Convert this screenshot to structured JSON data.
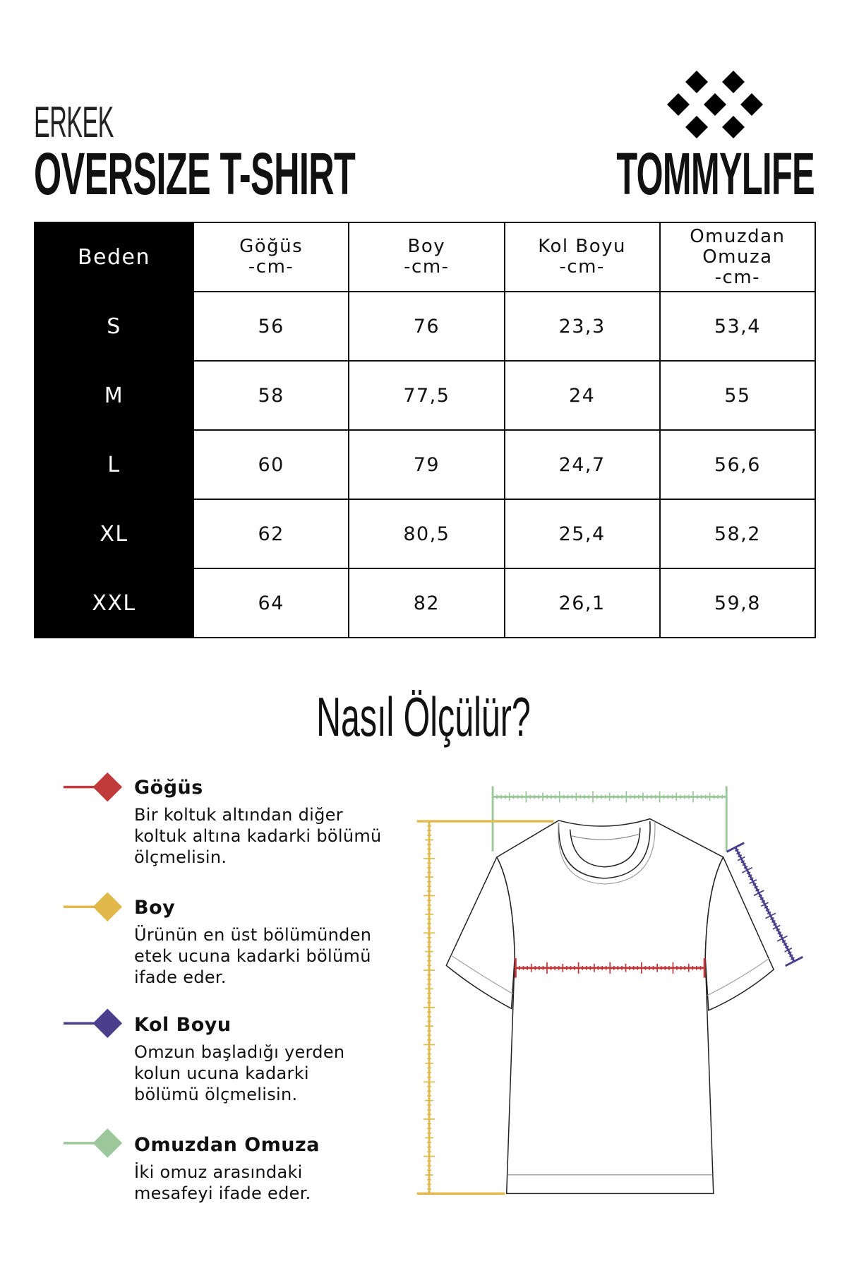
{
  "header": {
    "subtitle": "ERKEK",
    "title": "OVERSIZE T-SHIRT",
    "brand": "TOMMYLIFE"
  },
  "table": {
    "columns": [
      "Beden",
      "Göğüs\n-cm-",
      "Boy\n-cm-",
      "Kol Boyu\n-cm-",
      "Omuzdan\nOmuza\n-cm-"
    ],
    "column_lines": [
      [
        "Beden"
      ],
      [
        "Göğüs",
        "-cm-"
      ],
      [
        "Boy",
        "-cm-"
      ],
      [
        "Kol Boyu",
        "-cm-"
      ],
      [
        "Omuzdan",
        "Omuza",
        "-cm-"
      ]
    ],
    "rows": [
      [
        "S",
        "56",
        "76",
        "23,3",
        "53,4"
      ],
      [
        "M",
        "58",
        "77,5",
        "24",
        "55"
      ],
      [
        "L",
        "60",
        "79",
        "24,7",
        "56,6"
      ],
      [
        "XL",
        "62",
        "80,5",
        "25,4",
        "58,2"
      ],
      [
        "XXL",
        "64",
        "82",
        "26,1",
        "59,8"
      ]
    ]
  },
  "guide": {
    "heading": "Nasıl Ölçülür?",
    "items": [
      {
        "title": "Göğüs",
        "lines": [
          "Bir koltuk altından diğer",
          "koltuk altına kadarki bölümü",
          "ölçmelisin."
        ],
        "color": "#c0393b"
      },
      {
        "title": "Boy",
        "lines": [
          "Ürünün en üst bölümünden",
          "etek ucuna kadarki bölümü",
          "ifade eder."
        ],
        "color": "#e0b94a"
      },
      {
        "title": "Kol Boyu",
        "lines": [
          "Omzun başladığı yerden",
          "kolun ucuna kadarki",
          "bölümü ölçmelisin."
        ],
        "color": "#4b3f8c"
      },
      {
        "title": "Omuzdan Omuza",
        "lines": [
          "İki omuz arasındaki",
          "mesafeyi ifade eder."
        ],
        "color": "#9cc79a"
      }
    ]
  }
}
